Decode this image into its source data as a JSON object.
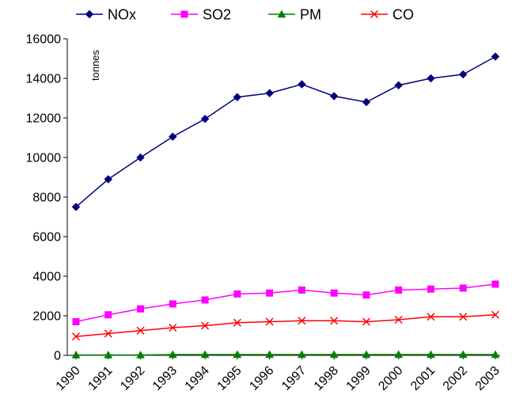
{
  "chart_data": {
    "type": "line",
    "title": "",
    "xlabel": "",
    "ylabel": "",
    "unit_label": "tonnes",
    "ylim": [
      0,
      16000
    ],
    "yticks": [
      0,
      2000,
      4000,
      6000,
      8000,
      10000,
      12000,
      14000,
      16000
    ],
    "grid": false,
    "legend_position": "top",
    "categories": [
      "1990",
      "1991",
      "1992",
      "1993",
      "1994",
      "1995",
      "1996",
      "1997",
      "1998",
      "1999",
      "2000",
      "2001",
      "2002",
      "2003"
    ],
    "series": [
      {
        "name": "NOx",
        "color": "#000080",
        "marker": "diamond",
        "values": [
          7500,
          8900,
          10000,
          11050,
          11950,
          13050,
          13250,
          13700,
          13100,
          12800,
          13650,
          14000,
          14200,
          15100
        ]
      },
      {
        "name": "SO2",
        "color": "#FF00FF",
        "marker": "square",
        "values": [
          1700,
          2050,
          2350,
          2600,
          2800,
          3100,
          3150,
          3300,
          3150,
          3050,
          3300,
          3350,
          3400,
          3600
        ]
      },
      {
        "name": "PM",
        "color": "#008000",
        "marker": "triangle",
        "values": [
          20,
          20,
          20,
          40,
          40,
          40,
          40,
          40,
          40,
          40,
          40,
          40,
          40,
          40
        ]
      },
      {
        "name": "CO",
        "color": "#FF0000",
        "marker": "x",
        "values": [
          950,
          1100,
          1250,
          1400,
          1500,
          1650,
          1700,
          1750,
          1750,
          1700,
          1800,
          1950,
          1950,
          2050
        ]
      }
    ]
  }
}
